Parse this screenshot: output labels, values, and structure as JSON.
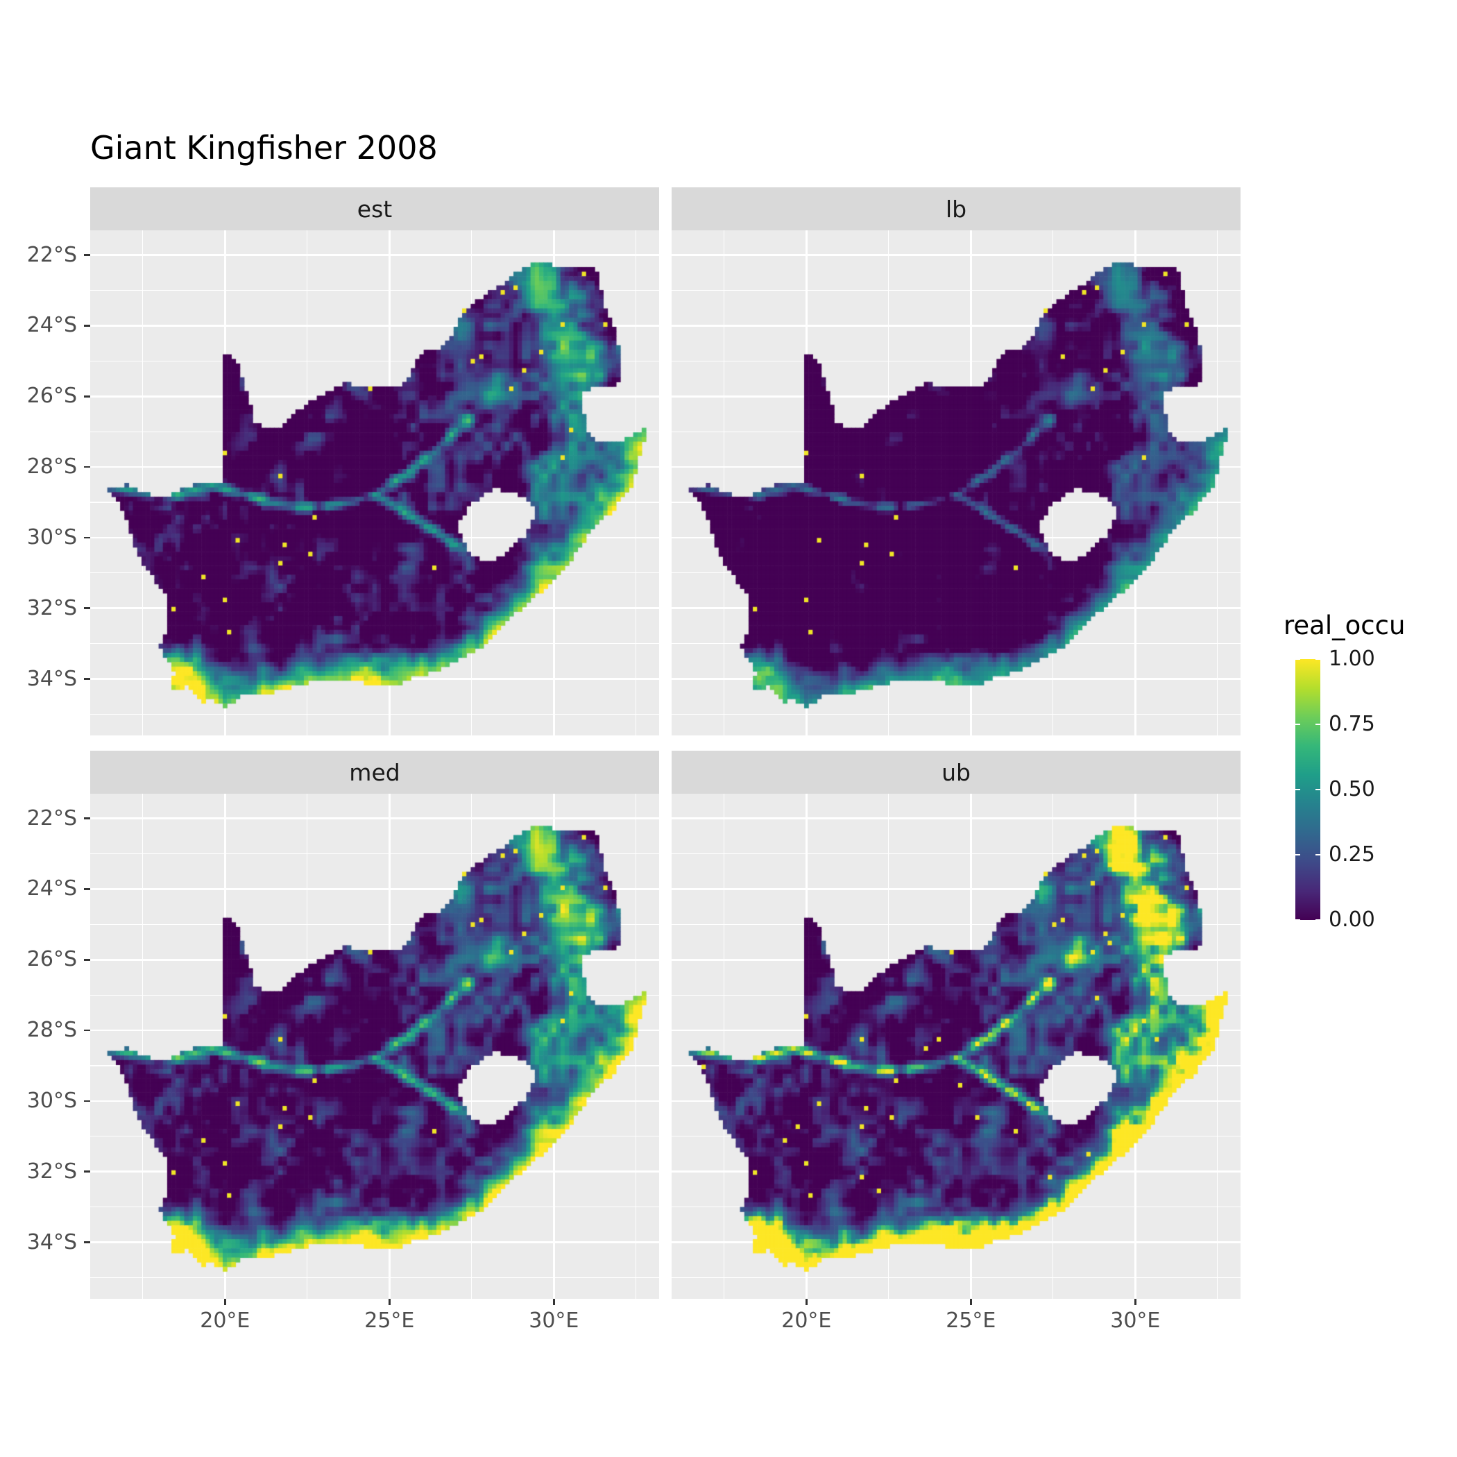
{
  "title": "Giant Kingfisher 2008",
  "facets": [
    {
      "id": "est",
      "label": "est"
    },
    {
      "id": "lb",
      "label": "lb"
    },
    {
      "id": "med",
      "label": "med"
    },
    {
      "id": "ub",
      "label": "ub"
    }
  ],
  "axes": {
    "x_ticks": [
      {
        "lon": 20,
        "label": "20°E"
      },
      {
        "lon": 25,
        "label": "25°E"
      },
      {
        "lon": 30,
        "label": "30°E"
      }
    ],
    "x_minor": [
      17.5,
      22.5,
      27.5,
      32.5
    ],
    "y_ticks": [
      {
        "lat": -22,
        "label": "22°S"
      },
      {
        "lat": -24,
        "label": "24°S"
      },
      {
        "lat": -26,
        "label": "26°S"
      },
      {
        "lat": -28,
        "label": "28°S"
      },
      {
        "lat": -30,
        "label": "30°S"
      },
      {
        "lat": -32,
        "label": "32°S"
      },
      {
        "lat": -34,
        "label": "34°S"
      }
    ],
    "y_minor": [
      -23,
      -25,
      -27,
      -29,
      -31,
      -33,
      -35
    ]
  },
  "legend": {
    "title": "real_occu",
    "ticks": [
      {
        "value": 1.0,
        "label": "1.00"
      },
      {
        "value": 0.75,
        "label": "0.75"
      },
      {
        "value": 0.5,
        "label": "0.50"
      },
      {
        "value": 0.25,
        "label": "0.25"
      },
      {
        "value": 0.0,
        "label": "0.00"
      }
    ]
  },
  "colors": {
    "background": "#FFFFFF",
    "panel_bg": "#EBEBEB",
    "strip_bg": "#D9D9D9",
    "grid": "#FFFFFF",
    "axis_text": "#4D4D4D",
    "tick_mark": "#333333",
    "title_text": "#000000",
    "viridis": [
      "#440154",
      "#482878",
      "#3E4A89",
      "#31688E",
      "#26828E",
      "#1F9E89",
      "#35B779",
      "#6DCD59",
      "#B4DE2C",
      "#FDE725"
    ]
  },
  "chart_data": {
    "type": "heatmap",
    "subtype": "faceted_raster_occupancy_map",
    "title": "Giant Kingfisher 2008",
    "region": "South Africa (Lesotho shown as hole)",
    "variable": "real_occu",
    "facets": [
      "est",
      "lb",
      "med",
      "ub"
    ],
    "facet_meaning": {
      "est": "estimate",
      "lb": "lower bound",
      "med": "median",
      "ub": "upper bound"
    },
    "color_scale": {
      "palette": "viridis",
      "limits": [
        0.0,
        1.0
      ],
      "legend_ticks": [
        0.0,
        0.25,
        0.5,
        0.75,
        1.0
      ]
    },
    "x_axis": {
      "ticks_deg_east": [
        20,
        25,
        30
      ],
      "range_deg_east": [
        15.9,
        33.2
      ]
    },
    "y_axis": {
      "ticks_deg_south": [
        22,
        24,
        26,
        28,
        30,
        32,
        34
      ],
      "range_deg_south": [
        21.3,
        35.6
      ]
    },
    "legend_position": "right",
    "grid": "white major and minor gridlines on grey panel",
    "pattern_summary": {
      "est": "High occupancy (green-yellow) along the south and east coastal belt, NE escarpment, Gauteng and along the Orange/Vaal rivers; near-zero (dark purple) over the arid Karoo and Kalahari interior.",
      "lb": "Same spatial pattern but suppressed: interior almost entirely dark purple; coastal and NE values only moderate with sparse yellow speckles.",
      "med": "Slightly brighter than est with a broad yellow band along the eastern coastal strip.",
      "ub": "Upper bound near 1.0 (solid yellow) over most of the eastern third, coastal belts and the southwest Cape; dry interior remains low."
    },
    "geo": {
      "south_africa_outline": [
        [
          16.45,
          -28.6
        ],
        [
          17.1,
          -28.5
        ],
        [
          17.6,
          -28.76
        ],
        [
          18.2,
          -28.86
        ],
        [
          19.0,
          -28.51
        ],
        [
          19.6,
          -28.5
        ],
        [
          19.99,
          -28.42
        ],
        [
          19.99,
          -24.76
        ],
        [
          20.38,
          -25.06
        ],
        [
          20.64,
          -25.8
        ],
        [
          20.82,
          -26.4
        ],
        [
          20.86,
          -26.81
        ],
        [
          21.65,
          -26.86
        ],
        [
          22.2,
          -26.39
        ],
        [
          22.88,
          -26.0
        ],
        [
          23.6,
          -25.61
        ],
        [
          24.4,
          -25.76
        ],
        [
          25.2,
          -25.76
        ],
        [
          25.62,
          -25.5
        ],
        [
          25.9,
          -24.76
        ],
        [
          26.5,
          -24.65
        ],
        [
          26.9,
          -24.3
        ],
        [
          27.2,
          -23.6
        ],
        [
          27.8,
          -23.2
        ],
        [
          28.3,
          -22.9
        ],
        [
          29.0,
          -22.4
        ],
        [
          29.5,
          -22.18
        ],
        [
          30.1,
          -22.3
        ],
        [
          30.9,
          -22.3
        ],
        [
          31.3,
          -22.4
        ],
        [
          31.6,
          -23.6
        ],
        [
          31.9,
          -24.2
        ],
        [
          32.02,
          -25.1
        ],
        [
          32.05,
          -25.64
        ],
        [
          31.4,
          -25.74
        ],
        [
          30.8,
          -25.85
        ],
        [
          30.92,
          -26.55
        ],
        [
          31.1,
          -27.2
        ],
        [
          31.97,
          -27.31
        ],
        [
          32.85,
          -26.86
        ],
        [
          32.55,
          -27.9
        ],
        [
          32.4,
          -28.5
        ],
        [
          31.8,
          -29.2
        ],
        [
          31.05,
          -29.9
        ],
        [
          30.3,
          -30.9
        ],
        [
          29.4,
          -31.7
        ],
        [
          28.6,
          -32.3
        ],
        [
          27.9,
          -33.03
        ],
        [
          27.0,
          -33.52
        ],
        [
          26.4,
          -33.76
        ],
        [
          25.66,
          -33.98
        ],
        [
          25.6,
          -34.06
        ],
        [
          24.8,
          -34.2
        ],
        [
          23.6,
          -33.99
        ],
        [
          22.55,
          -34.1
        ],
        [
          22.14,
          -34.18
        ],
        [
          21.5,
          -34.37
        ],
        [
          20.5,
          -34.47
        ],
        [
          20.0,
          -34.82
        ],
        [
          19.6,
          -34.61
        ],
        [
          19.35,
          -34.63
        ],
        [
          18.86,
          -34.18
        ],
        [
          18.47,
          -34.36
        ],
        [
          18.33,
          -34.1
        ],
        [
          18.46,
          -33.9
        ],
        [
          18.3,
          -33.47
        ],
        [
          17.98,
          -33.1
        ],
        [
          18.25,
          -32.65
        ],
        [
          18.3,
          -32.1
        ],
        [
          18.22,
          -31.66
        ],
        [
          17.55,
          -30.8
        ],
        [
          17.2,
          -30.1
        ],
        [
          16.95,
          -29.4
        ],
        [
          16.7,
          -28.95
        ]
      ],
      "lesotho_hole": [
        [
          27.05,
          -29.6
        ],
        [
          27.35,
          -30.35
        ],
        [
          27.75,
          -30.6
        ],
        [
          28.15,
          -30.65
        ],
        [
          28.6,
          -30.4
        ],
        [
          29.15,
          -29.9
        ],
        [
          29.45,
          -29.35
        ],
        [
          29.3,
          -29.0
        ],
        [
          28.85,
          -28.75
        ],
        [
          28.25,
          -28.6
        ],
        [
          27.75,
          -28.85
        ],
        [
          27.4,
          -29.15
        ]
      ],
      "coast": [
        [
          18.46,
          -33.9
        ],
        [
          18.86,
          -34.18
        ],
        [
          19.35,
          -34.63
        ],
        [
          20.0,
          -34.82
        ],
        [
          21.5,
          -34.37
        ],
        [
          22.14,
          -34.18
        ],
        [
          23.6,
          -33.99
        ],
        [
          24.8,
          -34.2
        ],
        [
          25.66,
          -33.98
        ],
        [
          27.0,
          -33.52
        ],
        [
          27.9,
          -33.03
        ],
        [
          28.6,
          -32.3
        ],
        [
          29.4,
          -31.7
        ],
        [
          30.3,
          -30.9
        ],
        [
          31.05,
          -29.9
        ],
        [
          31.8,
          -29.2
        ],
        [
          32.4,
          -28.5
        ],
        [
          32.55,
          -27.9
        ],
        [
          32.85,
          -26.86
        ]
      ],
      "rivers": [
        [
          [
            16.5,
            -28.55
          ],
          [
            17.6,
            -28.72
          ],
          [
            18.6,
            -28.76
          ],
          [
            19.6,
            -28.52
          ],
          [
            20.6,
            -28.77
          ],
          [
            21.4,
            -29.02
          ],
          [
            22.2,
            -29.15
          ],
          [
            23.0,
            -29.1
          ],
          [
            23.8,
            -29.0
          ],
          [
            24.6,
            -28.76
          ],
          [
            25.4,
            -28.26
          ],
          [
            26.2,
            -27.72
          ],
          [
            26.9,
            -27.06
          ],
          [
            27.4,
            -26.66
          ]
        ],
        [
          [
            24.6,
            -28.76
          ],
          [
            25.7,
            -29.45
          ],
          [
            26.65,
            -30.0
          ],
          [
            27.2,
            -30.28
          ]
        ]
      ],
      "escarpment": [
        [
          29.6,
          -22.6
        ],
        [
          30.3,
          -23.8
        ],
        [
          30.8,
          -25.0
        ],
        [
          30.6,
          -26.2
        ],
        [
          30.9,
          -27.3
        ],
        [
          30.0,
          -28.6
        ],
        [
          29.3,
          -29.3
        ]
      ]
    },
    "render": {
      "cell_deg": 0.13,
      "noise_seed": 7,
      "facet_transform": {
        "est": {
          "gain": 1.0,
          "bias": -0.03,
          "extra": 0.0,
          "speckle": 0.9955
        },
        "lb": {
          "gain": 0.95,
          "bias": -0.17,
          "extra": -0.22,
          "speckle": 0.996
        },
        "med": {
          "gain": 1.0,
          "bias": 0.04,
          "extra": 0.22,
          "speckle": 0.995
        },
        "ub": {
          "gain": 1.0,
          "bias": 0.07,
          "extra": 1.1,
          "speckle": 0.992
        }
      }
    }
  }
}
